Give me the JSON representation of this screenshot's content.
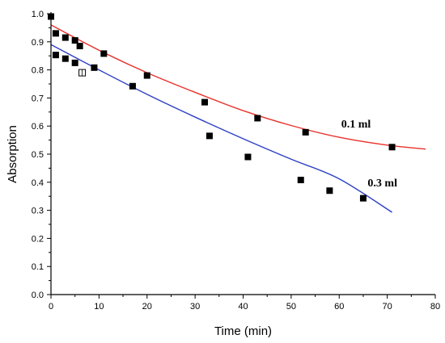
{
  "chart_data": {
    "type": "scatter",
    "title": "",
    "xlabel": "Time (min)",
    "ylabel": "Absorption",
    "xlim": [
      0,
      80
    ],
    "ylim": [
      0.0,
      1.0
    ],
    "x_ticks": [
      "0",
      "10",
      "20",
      "30",
      "40",
      "50",
      "60",
      "70",
      "80"
    ],
    "y_ticks": [
      "0.0",
      "0.1",
      "0.2",
      "0.3",
      "0.4",
      "0.5",
      "0.6",
      "0.7",
      "0.8",
      "0.9",
      "1.0"
    ],
    "grid": false,
    "series": [
      {
        "name": "0.1 ml",
        "color": "#e8312b",
        "points": [
          [
            0,
            0.99
          ],
          [
            1,
            0.93
          ],
          [
            3,
            0.915
          ],
          [
            5,
            0.905
          ],
          [
            6,
            0.885
          ],
          [
            11,
            0.858
          ],
          [
            20,
            0.78
          ],
          [
            32,
            0.685
          ],
          [
            43,
            0.628
          ],
          [
            53,
            0.578
          ],
          [
            71,
            0.525
          ]
        ],
        "fit": [
          [
            0,
            0.96
          ],
          [
            10,
            0.87
          ],
          [
            20,
            0.79
          ],
          [
            30,
            0.72
          ],
          [
            40,
            0.655
          ],
          [
            50,
            0.602
          ],
          [
            60,
            0.56
          ],
          [
            70,
            0.532
          ],
          [
            78,
            0.518
          ]
        ]
      },
      {
        "name": "0.3 ml",
        "color": "#2b3fc2",
        "points": [
          [
            1,
            0.853
          ],
          [
            3,
            0.84
          ],
          [
            5,
            0.825
          ],
          [
            9,
            0.808
          ],
          [
            17,
            0.742
          ],
          [
            33,
            0.565
          ],
          [
            41,
            0.49
          ],
          [
            52,
            0.408
          ],
          [
            58,
            0.37
          ],
          [
            65,
            0.343
          ]
        ],
        "fit": [
          [
            0,
            0.89
          ],
          [
            10,
            0.8
          ],
          [
            20,
            0.713
          ],
          [
            30,
            0.632
          ],
          [
            40,
            0.555
          ],
          [
            50,
            0.482
          ],
          [
            60,
            0.412
          ],
          [
            71,
            0.293
          ]
        ]
      }
    ],
    "open_markers": [
      [
        6.5,
        0.79
      ]
    ]
  }
}
